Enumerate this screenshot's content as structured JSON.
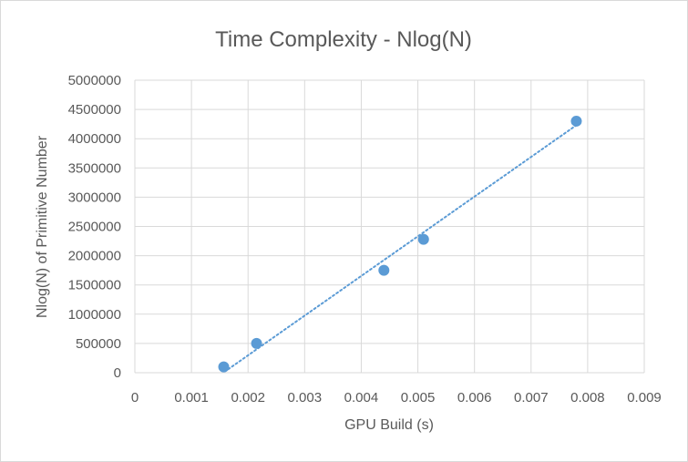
{
  "chart_data": {
    "type": "scatter",
    "title": "Time Complexity - Nlog(N)",
    "xlabel": "GPU Build (s)",
    "ylabel": "Nlog(N) of Primitive Number",
    "xlim": [
      0,
      0.009
    ],
    "ylim": [
      0,
      5000000
    ],
    "x_ticks": [
      0,
      0.001,
      0.002,
      0.003,
      0.004,
      0.005,
      0.006,
      0.007,
      0.008,
      0.009
    ],
    "x_tick_labels": [
      "0",
      "0.001",
      "0.002",
      "0.003",
      "0.004",
      "0.005",
      "0.006",
      "0.007",
      "0.008",
      "0.009"
    ],
    "y_ticks": [
      0,
      500000,
      1000000,
      1500000,
      2000000,
      2500000,
      3000000,
      3500000,
      4000000,
      4500000,
      5000000
    ],
    "y_tick_labels": [
      "0",
      "500000",
      "1000000",
      "1500000",
      "2000000",
      "2500000",
      "3000000",
      "3500000",
      "4000000",
      "4500000",
      "5000000"
    ],
    "grid": true,
    "series": [
      {
        "points": [
          {
            "x": 0.00157,
            "y": 100000
          },
          {
            "x": 0.00215,
            "y": 500000
          },
          {
            "x": 0.0044,
            "y": 1750000
          },
          {
            "x": 0.0051,
            "y": 2280000
          },
          {
            "x": 0.0078,
            "y": 4300000
          }
        ],
        "color": "#5b9bd5"
      }
    ],
    "trendline": {
      "type": "linear",
      "style": "dotted",
      "color": "#5b9bd5",
      "from": {
        "x": 0.00165,
        "y": 60000
      },
      "to": {
        "x": 0.0078,
        "y": 4230000
      }
    },
    "colors": {
      "grid": "#d9d9d9",
      "axis_text": "#595959",
      "title_text": "#595959"
    }
  }
}
